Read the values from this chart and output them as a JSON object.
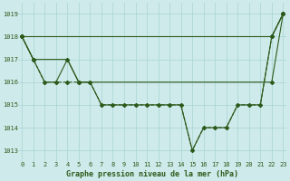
{
  "series_diagonal": {
    "x": [
      0,
      22,
      23
    ],
    "y": [
      1018,
      1018,
      1019
    ],
    "color": "#2d5a1b",
    "linewidth": 0.8,
    "marker": "D",
    "markersize": 2.0,
    "linestyle": "-"
  },
  "series_peak": {
    "x": [
      0,
      1,
      4,
      5,
      22,
      23
    ],
    "y": [
      1018,
      1017,
      1017,
      1016,
      1016,
      1019
    ],
    "color": "#2d5a1b",
    "linewidth": 0.8,
    "marker": "D",
    "markersize": 2.0,
    "linestyle": "-"
  },
  "series_main": {
    "x": [
      0,
      1,
      2,
      3,
      4,
      5,
      6,
      7,
      8,
      9,
      10,
      11,
      12,
      13,
      14,
      15,
      16,
      17,
      18,
      19,
      20,
      21,
      22,
      23
    ],
    "y": [
      1018,
      1017,
      1016,
      1016,
      1017,
      1016,
      1016,
      1015,
      1015,
      1015,
      1015,
      1015,
      1015,
      1015,
      1015,
      1013,
      1014,
      1014,
      1014,
      1015,
      1015,
      1015,
      1018,
      1019
    ],
    "color": "#2d5a1b",
    "linewidth": 0.8,
    "marker": "+",
    "markersize": 3.5,
    "linestyle": "-"
  },
  "series_dashed": {
    "x": [
      0,
      1,
      2,
      3,
      4,
      5,
      6,
      7,
      8,
      9,
      10,
      11,
      12,
      13,
      14,
      15,
      16,
      17,
      18,
      19,
      20,
      21,
      22,
      23
    ],
    "y": [
      1018,
      1017,
      1016,
      1016,
      1016,
      1016,
      1016,
      1015,
      1015,
      1015,
      1015,
      1015,
      1015,
      1015,
      1015,
      1013,
      1014,
      1014,
      1014,
      1015,
      1015,
      1015,
      1018,
      1019
    ],
    "color": "#2d5a1b",
    "linewidth": 0.8,
    "marker": "D",
    "markersize": 2.0,
    "linestyle": "--"
  },
  "ylim": [
    1012.5,
    1019.5
  ],
  "xlim": [
    -0.3,
    23.3
  ],
  "yticks": [
    1013,
    1014,
    1015,
    1016,
    1017,
    1018,
    1019
  ],
  "xticks": [
    0,
    1,
    2,
    3,
    4,
    5,
    6,
    7,
    8,
    9,
    10,
    11,
    12,
    13,
    14,
    15,
    16,
    17,
    18,
    19,
    20,
    21,
    22,
    23
  ],
  "xlabel": "Graphe pression niveau de la mer (hPa)",
  "bg_color": "#ceeaea",
  "grid_color": "#a8d4d4",
  "text_color": "#2d5a1b",
  "label_color": "#2d5a1b",
  "tick_fontsize": 5.0,
  "xlabel_fontsize": 6.0
}
